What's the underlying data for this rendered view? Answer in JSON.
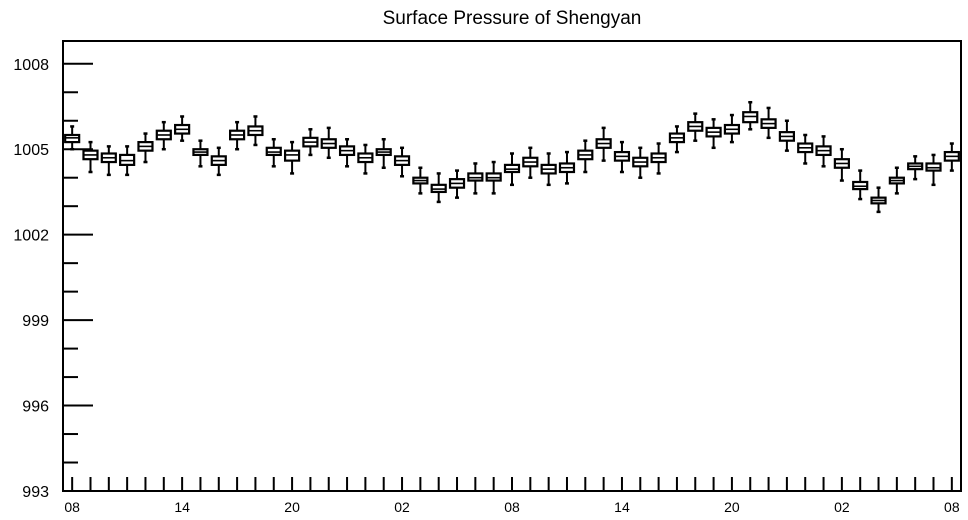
{
  "chart_data": {
    "type": "box",
    "title": "Surface Pressure of Shengyan",
    "xlabel": "",
    "ylabel": "",
    "ylim": [
      993,
      1008.8
    ],
    "yticks": [
      993,
      996,
      999,
      1002,
      1005,
      1008
    ],
    "ytick_labels": [
      "993",
      "996",
      "999",
      "1002",
      "1005",
      "1008"
    ],
    "xtick_labels": [
      "08",
      "14",
      "20",
      "02",
      "08",
      "14",
      "20",
      "02",
      "08"
    ],
    "xtick_every": 6,
    "grid": false,
    "legend": "none",
    "series": [
      {
        "medians": [
          1005.4,
          1004.8,
          1004.7,
          1004.6,
          1005.1,
          1005.5,
          1005.7,
          1004.9,
          1004.6,
          1005.5,
          1005.65,
          1004.9,
          1004.8,
          1005.25,
          1005.2,
          1004.95,
          1004.7,
          1004.9,
          1004.6,
          1003.9,
          1003.6,
          1003.8,
          1004.0,
          1004.0,
          1004.3,
          1004.55,
          1004.3,
          1004.35,
          1004.8,
          1005.2,
          1004.75,
          1004.55,
          1004.7,
          1005.4,
          1005.8,
          1005.6,
          1005.7,
          1006.15,
          1005.9,
          1005.45,
          1005.05,
          1004.95,
          1004.5,
          1003.7,
          1003.2,
          1003.9,
          1004.4,
          1004.35,
          1004.75
        ],
        "q1": [
          1005.25,
          1004.65,
          1004.55,
          1004.45,
          1004.95,
          1005.35,
          1005.55,
          1004.8,
          1004.45,
          1005.35,
          1005.5,
          1004.8,
          1004.6,
          1005.1,
          1005.05,
          1004.8,
          1004.55,
          1004.8,
          1004.45,
          1003.8,
          1003.5,
          1003.65,
          1003.9,
          1003.9,
          1004.2,
          1004.4,
          1004.15,
          1004.2,
          1004.65,
          1005.05,
          1004.6,
          1004.4,
          1004.55,
          1005.25,
          1005.65,
          1005.45,
          1005.55,
          1005.95,
          1005.75,
          1005.3,
          1004.9,
          1004.8,
          1004.35,
          1003.6,
          1003.1,
          1003.8,
          1004.3,
          1004.25,
          1004.6
        ],
        "q3": [
          1005.5,
          1004.95,
          1004.85,
          1004.8,
          1005.25,
          1005.65,
          1005.85,
          1005.0,
          1004.75,
          1005.65,
          1005.8,
          1005.05,
          1004.95,
          1005.4,
          1005.35,
          1005.1,
          1004.85,
          1005.0,
          1004.75,
          1004.0,
          1003.75,
          1003.95,
          1004.15,
          1004.15,
          1004.45,
          1004.7,
          1004.45,
          1004.5,
          1004.95,
          1005.35,
          1004.9,
          1004.7,
          1004.85,
          1005.55,
          1005.95,
          1005.75,
          1005.85,
          1006.3,
          1006.05,
          1005.6,
          1005.2,
          1005.1,
          1004.65,
          1003.85,
          1003.3,
          1004.0,
          1004.5,
          1004.5,
          1004.9
        ],
        "whisker_low": [
          1005.0,
          1004.2,
          1004.1,
          1004.1,
          1004.55,
          1005.0,
          1005.3,
          1004.4,
          1004.1,
          1005.0,
          1005.15,
          1004.4,
          1004.15,
          1004.8,
          1004.7,
          1004.4,
          1004.15,
          1004.35,
          1004.05,
          1003.45,
          1003.15,
          1003.3,
          1003.45,
          1003.45,
          1003.75,
          1004.0,
          1003.75,
          1003.8,
          1004.2,
          1004.6,
          1004.2,
          1004.0,
          1004.15,
          1004.9,
          1005.3,
          1005.05,
          1005.25,
          1005.7,
          1005.4,
          1004.95,
          1004.5,
          1004.4,
          1003.9,
          1003.25,
          1002.8,
          1003.45,
          1003.95,
          1003.75,
          1004.25
        ],
        "whisker_high": [
          1005.8,
          1005.25,
          1005.1,
          1005.1,
          1005.55,
          1005.95,
          1006.15,
          1005.3,
          1005.05,
          1005.95,
          1006.15,
          1005.35,
          1005.25,
          1005.7,
          1005.75,
          1005.35,
          1005.15,
          1005.35,
          1005.05,
          1004.35,
          1004.15,
          1004.25,
          1004.5,
          1004.55,
          1004.85,
          1005.05,
          1004.85,
          1004.9,
          1005.3,
          1005.75,
          1005.25,
          1005.05,
          1005.2,
          1005.8,
          1006.25,
          1006.05,
          1006.2,
          1006.65,
          1006.45,
          1006.0,
          1005.5,
          1005.45,
          1005.0,
          1004.25,
          1003.65,
          1004.35,
          1004.75,
          1004.8,
          1005.2
        ]
      }
    ]
  }
}
